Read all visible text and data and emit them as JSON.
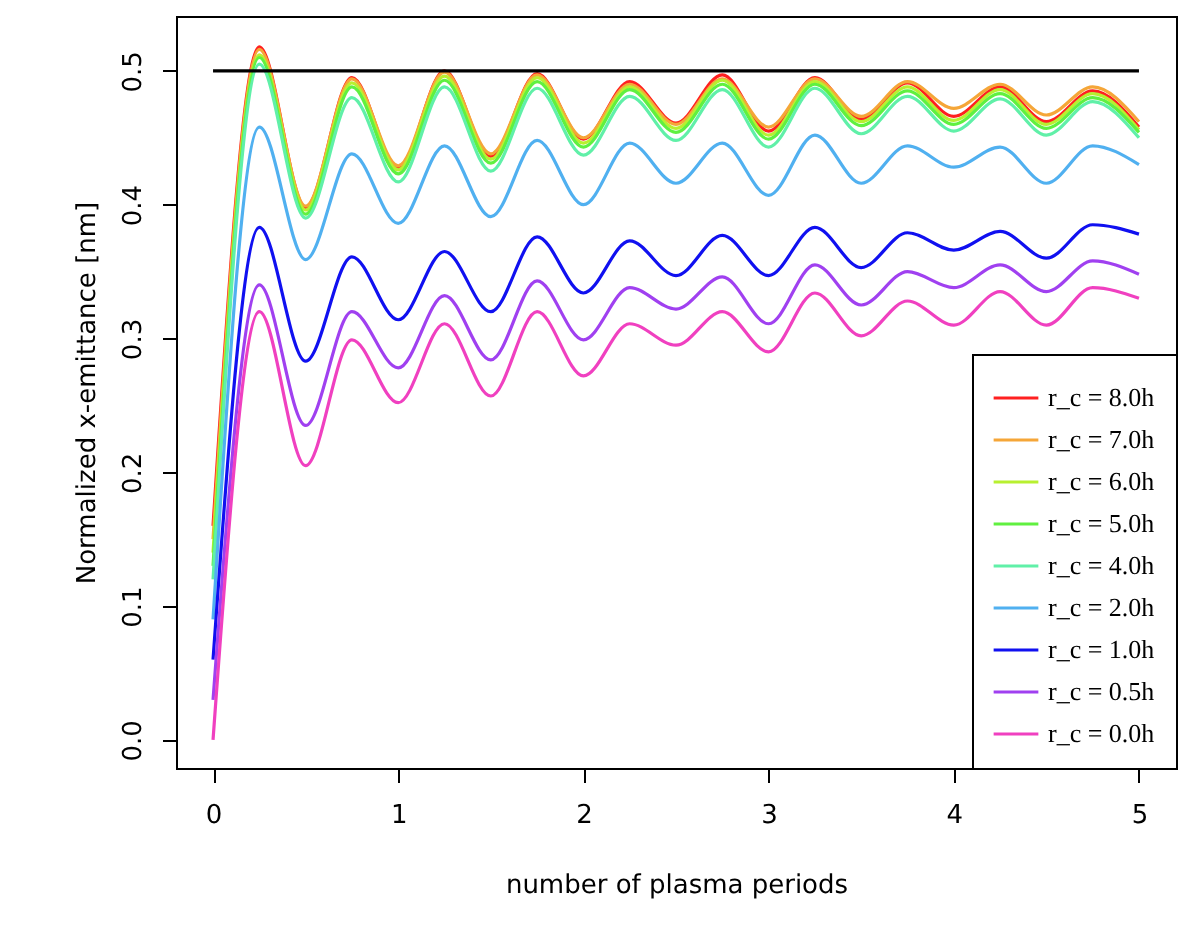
{
  "chart_data": {
    "type": "line",
    "xlabel": "number of plasma periods",
    "ylabel": "Normalized x-emittance [nm]",
    "x": [
      0,
      0.25,
      0.5,
      0.75,
      1,
      1.25,
      1.5,
      1.75,
      2,
      2.25,
      2.5,
      2.75,
      3,
      3.25,
      3.5,
      3.75,
      4,
      4.25,
      4.5,
      4.75,
      5
    ],
    "xlim": [
      -0.2,
      5.2
    ],
    "xticks": [
      0,
      1,
      2,
      3,
      4,
      5
    ],
    "ylim": [
      -0.021,
      0.541
    ],
    "yticks": [
      {
        "value": 0,
        "label": "0.0"
      },
      0.1,
      0.2,
      0.3,
      0.4,
      0.5
    ],
    "grid": false,
    "legend": "bottom right",
    "marker": "none",
    "line_style": "solid",
    "series": [
      {
        "name": "r_c = 8.0h",
        "color": "#ff2020",
        "values": [
          0.16,
          0.518,
          0.398,
          0.495,
          0.427,
          0.5,
          0.436,
          0.498,
          0.449,
          0.492,
          0.461,
          0.497,
          0.455,
          0.495,
          0.464,
          0.491,
          0.466,
          0.488,
          0.462,
          0.485,
          0.458
        ]
      },
      {
        "name": "r_c = 7.0h",
        "color": "#f5a638",
        "values": [
          0.15,
          0.516,
          0.399,
          0.494,
          0.429,
          0.499,
          0.438,
          0.497,
          0.45,
          0.49,
          0.46,
          0.494,
          0.458,
          0.494,
          0.466,
          0.492,
          0.472,
          0.49,
          0.467,
          0.488,
          0.462
        ]
      },
      {
        "name": "r_c = 6.0h",
        "color": "#b8f030",
        "values": [
          0.14,
          0.512,
          0.396,
          0.491,
          0.426,
          0.496,
          0.434,
          0.495,
          0.446,
          0.488,
          0.457,
          0.493,
          0.452,
          0.492,
          0.462,
          0.488,
          0.463,
          0.486,
          0.46,
          0.483,
          0.456
        ]
      },
      {
        "name": "r_c = 5.0h",
        "color": "#60f040",
        "values": [
          0.13,
          0.51,
          0.393,
          0.488,
          0.423,
          0.493,
          0.431,
          0.492,
          0.443,
          0.486,
          0.454,
          0.49,
          0.449,
          0.49,
          0.459,
          0.485,
          0.46,
          0.483,
          0.457,
          0.48,
          0.454
        ]
      },
      {
        "name": "r_c = 4.0h",
        "color": "#60f0a8",
        "values": [
          0.12,
          0.505,
          0.39,
          0.48,
          0.417,
          0.488,
          0.425,
          0.487,
          0.437,
          0.481,
          0.448,
          0.486,
          0.443,
          0.487,
          0.453,
          0.481,
          0.455,
          0.479,
          0.452,
          0.477,
          0.45
        ]
      },
      {
        "name": "r_c = 2.0h",
        "color": "#50b0f0",
        "values": [
          0.09,
          0.458,
          0.359,
          0.438,
          0.386,
          0.444,
          0.391,
          0.448,
          0.4,
          0.446,
          0.416,
          0.446,
          0.407,
          0.452,
          0.416,
          0.444,
          0.428,
          0.443,
          0.416,
          0.444,
          0.43
        ]
      },
      {
        "name": "r_c = 1.0h",
        "color": "#1010f0",
        "values": [
          0.06,
          0.383,
          0.283,
          0.361,
          0.314,
          0.365,
          0.32,
          0.376,
          0.334,
          0.373,
          0.347,
          0.377,
          0.347,
          0.383,
          0.353,
          0.379,
          0.366,
          0.38,
          0.36,
          0.385,
          0.378
        ]
      },
      {
        "name": "r_c = 0.5h",
        "color": "#a040f0",
        "values": [
          0.03,
          0.34,
          0.235,
          0.32,
          0.278,
          0.332,
          0.284,
          0.343,
          0.299,
          0.338,
          0.322,
          0.346,
          0.311,
          0.355,
          0.325,
          0.35,
          0.338,
          0.355,
          0.335,
          0.358,
          0.348
        ]
      },
      {
        "name": "r_c = 0.0h",
        "color": "#f040c0",
        "values": [
          0,
          0.32,
          0.205,
          0.299,
          0.252,
          0.311,
          0.257,
          0.32,
          0.272,
          0.311,
          0.295,
          0.32,
          0.29,
          0.334,
          0.302,
          0.328,
          0.31,
          0.335,
          0.31,
          0.338,
          0.33
        ]
      },
      {
        "color": "#000000",
        "x": [
          0,
          5
        ],
        "values": [
          0.5,
          0.5
        ]
      }
    ]
  }
}
